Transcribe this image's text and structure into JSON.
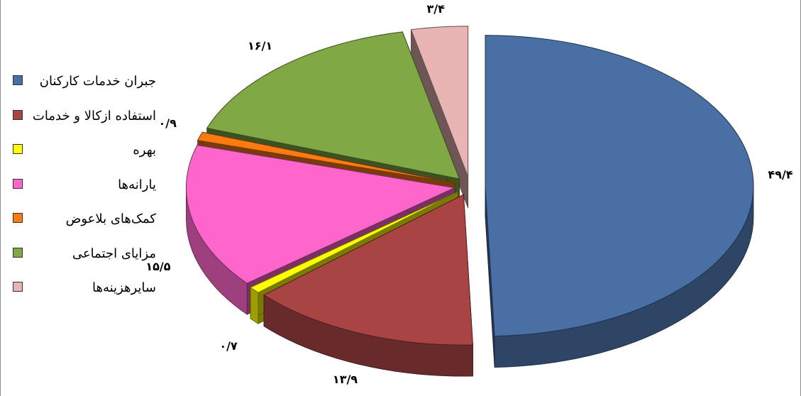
{
  "chart_data": {
    "type": "pie",
    "title": "",
    "legend_position": "left",
    "categories": [
      "جبران خدمات کارکنان",
      "استفاده ازکالا و خدمات",
      "بهره",
      "یارانه‌ها",
      "کمک‌های بلاعوض",
      "مزایای اجتماعی",
      "سایرهزینه‌ها"
    ],
    "values": [
      49.4,
      13.9,
      0.7,
      15.5,
      0.9,
      16.1,
      3.4
    ],
    "data_labels": [
      "۴۹/۴",
      "۱۳/۹",
      "۰/۷",
      "۱۵/۵",
      "۰/۹",
      "۱۶/۱",
      "۳/۴"
    ],
    "colors": [
      "#4a6fa5",
      "#a84444",
      "#ffff00",
      "#ff66cc",
      "#ff7b12",
      "#80a845",
      "#e8b4b4"
    ]
  }
}
